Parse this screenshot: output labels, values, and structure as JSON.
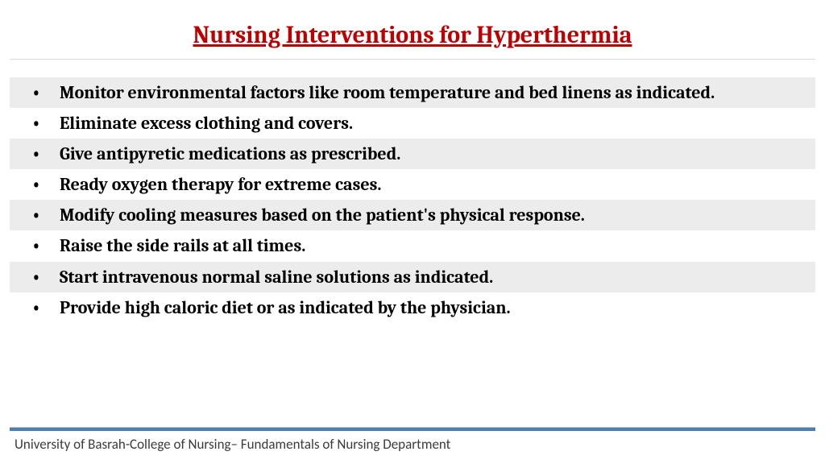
{
  "title": {
    "text": "Nursing Interventions for Hyperthermia",
    "color": "#c00000",
    "fontsize": 30
  },
  "interventions": [
    "Monitor environmental factors like room temperature and bed linens as indicated.",
    "Eliminate excess clothing and covers.",
    "Give antipyretic medications as prescribed.",
    "Ready oxygen therapy for extreme cases.",
    "Modify cooling measures based on the patient's physical response.",
    "Raise the side rails at all times.",
    "Start intravenous normal saline solutions  as indicated.",
    "Provide high caloric diet or as indicated by the physician."
  ],
  "list_style": {
    "font_size": 22,
    "font_weight": "bold",
    "alt_row_bg": "#ececec",
    "text_color": "#000000"
  },
  "footer_rule_color": "#4a7ebb",
  "footer": "University of Basrah-College of Nursing– Fundamentals of Nursing Department"
}
